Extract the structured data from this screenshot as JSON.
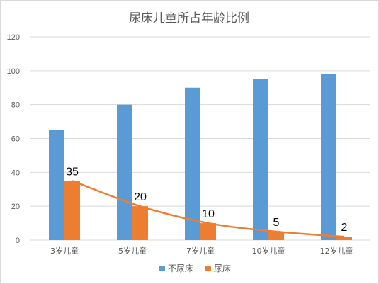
{
  "chart_data": {
    "type": "bar",
    "title": "尿床儿童所占年龄比例",
    "categories": [
      "3岁儿童",
      "5岁儿童",
      "7岁儿童",
      "10岁儿童",
      "12岁儿童"
    ],
    "series": [
      {
        "name": "不尿床",
        "values": [
          65,
          80,
          90,
          95,
          98
        ],
        "color": "#5b9bd5"
      },
      {
        "name": "尿床",
        "values": [
          35,
          20,
          10,
          5,
          2
        ],
        "color": "#ed7d31"
      }
    ],
    "trendline": {
      "series": "尿床",
      "color": "#ed7d31"
    },
    "data_labels_series": "尿床",
    "ylim": [
      0,
      120
    ],
    "yticks": [
      0,
      20,
      40,
      60,
      80,
      100,
      120
    ],
    "grid": true,
    "legend_position": "bottom"
  }
}
